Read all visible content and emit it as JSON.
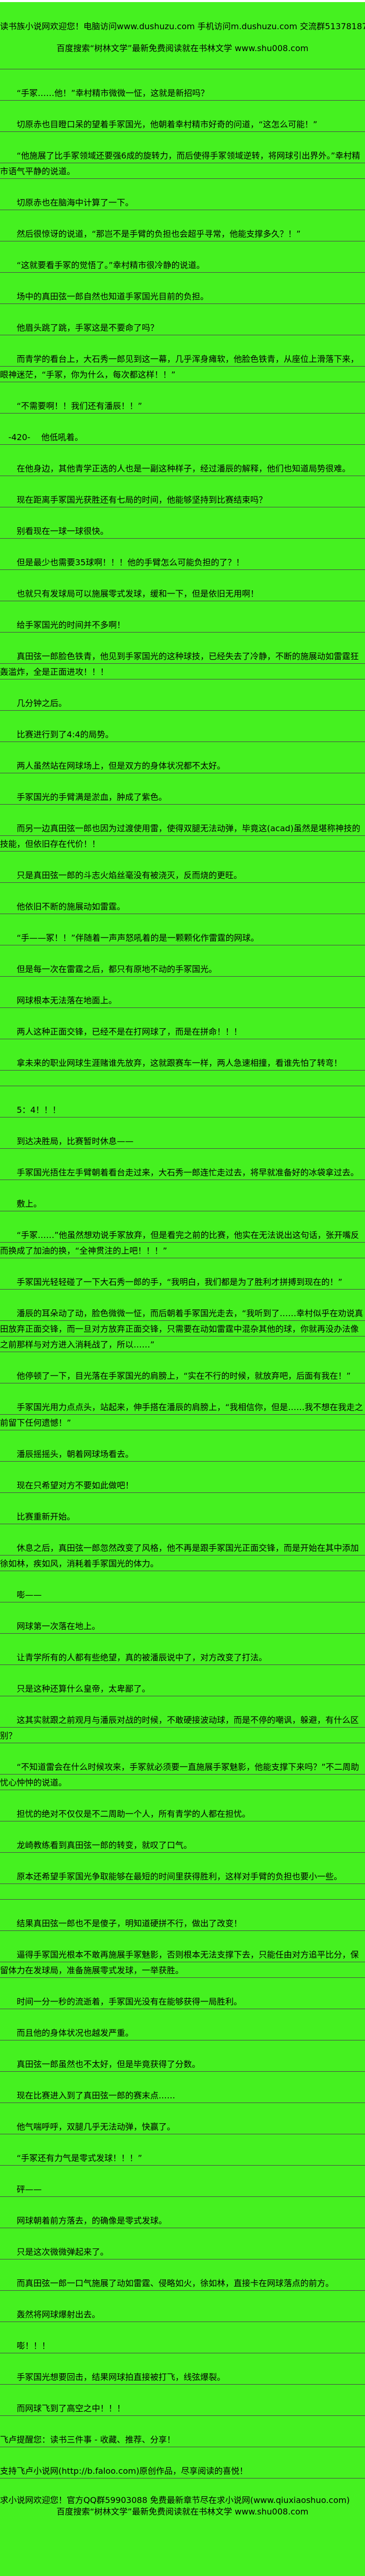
{
  "colors": {
    "background": "#45F120",
    "text": "#000000",
    "rule_line": "#4a4a4a",
    "top_strip": "#ffffff"
  },
  "header": {
    "line1": "读书族小说网欢迎您！电脑访问www.dushuzu.com 手机访问m.dushuzu.com 交流群513781872",
    "line2": "百度搜索“树林文学”最新免费阅读就在书林文学 www.shu008.com"
  },
  "content": {
    "page_marker": "-420-",
    "paragraphs": [
      {
        "text": "",
        "indent": 2
      },
      {
        "text": "“手冢……他！”幸村精市微微一怔，这就是新招吗？",
        "indent": 2
      },
      {
        "text": "切原赤也目瞪口呆的望着手冢国光，他朝着幸村精市好奇的问道，“这怎么可能！”",
        "indent": 2
      },
      {
        "text": "“他施展了比手冢领域还要强6成的旋转力，而后使得手冢领域逆转，将网球引出界外。”幸村精市语气平静的说道。",
        "indent": 2
      },
      {
        "text": "切原赤也在脑海中计算了一下。",
        "indent": 2
      },
      {
        "text": "然后很惊讶的说道，“那岂不是手臂的负担也会超乎寻常，他能支撑多久？！”",
        "indent": 2
      },
      {
        "text": "“这就要看手冢的觉悟了。”幸村精市很冷静的说道。",
        "indent": 2
      },
      {
        "text": "场中的真田弦一郎自然也知道手冢国光目前的负担。",
        "indent": 2
      },
      {
        "text": "他眉头跳了跳，手冢这是不要命了吗？",
        "indent": 2
      },
      {
        "text": "而青学的看台上，大石秀一郎见到这一幕，几乎浑身瘫软，他脸色铁青，从座位上滑落下来，眼神迷茫，“手冢，你为什么，每次都这样！！”",
        "indent": 2
      },
      {
        "text": "“不需要啊！！我们还有潘辰！！”",
        "indent": 2
      },
      {
        "text": "-420-　 他低吼着。",
        "indent": 1
      },
      {
        "text": "在他身边，其他青学正选的人也是一副这种样子，经过潘辰的解释，他们也知道局势很难。",
        "indent": 2
      },
      {
        "text": "现在距离手冢国光获胜还有七局的时间，他能够坚持到比赛结束吗？",
        "indent": 2
      },
      {
        "text": "别看现在一球一球很快。",
        "indent": 2
      },
      {
        "text": "但是最少也需要35球啊！！！他的手臂怎么可能负担的了？！",
        "indent": 2
      },
      {
        "text": "也就只有发球局可以施展零式发球，缓和一下，但是依旧无用啊！",
        "indent": 2
      },
      {
        "text": "给手冢国光的时间并不多啊！",
        "indent": 2
      },
      {
        "text": "真田弦一郎脸色铁青，他见到手冢国光的这种球技，已经失去了冷静，不断的施展动如雷霆狂轰滥炸，全是正面进攻！！！",
        "indent": 2
      },
      {
        "text": "几分钟之后。",
        "indent": 2
      },
      {
        "text": "比赛进行到了4:4的局势。",
        "indent": 2
      },
      {
        "text": "两人虽然站在网球场上，但是双方的身体状况都不太好。",
        "indent": 2
      },
      {
        "text": "手冢国光的手臂满是淤血，肿成了紫色。",
        "indent": 2
      },
      {
        "text": "而另一边真田弦一郎也因为过渡使用雷，使得双腿无法动弹，毕竟这(acad)虽然是堪称神技的技能，但依旧存在代价！！",
        "indent": 2
      },
      {
        "text": "只是真田弦一郎的斗志火焰丝毫没有被浇灭，反而烧的更旺。",
        "indent": 2
      },
      {
        "text": "他依旧不断的施展动如雷霆。",
        "indent": 2
      },
      {
        "text": "“手——冢！！”伴随着一声声怒吼着的是一颗颗化作雷霆的网球。",
        "indent": 2
      },
      {
        "text": "但是每一次在雷霆之后，都只有原地不动的手冢国光。",
        "indent": 2
      },
      {
        "text": "网球根本无法落在地面上。",
        "indent": 2
      },
      {
        "text": "两人这种正面交锋，已经不是在打网球了，而是在拼命！！！",
        "indent": 2
      },
      {
        "text": "拿未来的职业网球生涯赌谁先放弃，这就跟赛车一样，两人急速相撞，看谁先怕了转弯！",
        "indent": 2,
        "blank_line_after": true
      },
      {
        "text": "5：4！！！",
        "indent": 2
      },
      {
        "text": "到达决胜局，比赛暂时休息——",
        "indent": 2
      },
      {
        "text": "手冢国光捂住左手臂朝着看台走过来，大石秀一郎连忙走过去，将早就准备好的冰袋拿过去。",
        "indent": 2
      },
      {
        "text": "敷上。",
        "indent": 2
      },
      {
        "text": "“手冢……”他虽然想劝说手冢放弃，但是看完之前的比赛，他实在无法说出这句话，张开嘴反而换成了加油的换，“全神贯注的上吧！！！”",
        "indent": 2
      },
      {
        "text": "手冢国光轻轻碰了一下大石秀一郎的手，“我明白，我们都是为了胜利才拼搏到现在的！”",
        "indent": 2
      },
      {
        "text": "潘辰的耳朵动了动，脸色微微一怔，而后朝着手冢国光走去，“我听到了……幸村似乎在劝说真田放弃正面交锋，而一旦对方放弃正面交锋，只需要在动如雷霆中混杂其他的球，你就再没办法像之前那样与对方进入消耗战了，所以……”",
        "indent": 2
      },
      {
        "text": "他停顿了一下，目光落在手冢国光的肩膀上，“实在不行的时候，就放弃吧，后面有我在！”",
        "indent": 2
      },
      {
        "text": "手冢国光用力点点头，站起来，伸手搭在潘辰的肩膀上，“我相信你，但是……我不想在我走之前留下任何遗憾！”",
        "indent": 2
      },
      {
        "text": "潘辰摇摇头，朝着网球场看去。",
        "indent": 2
      },
      {
        "text": "现在只希望对方不要如此做吧！",
        "indent": 2
      },
      {
        "text": "比赛重新开始。",
        "indent": 2
      },
      {
        "text": "休息之后，真田弦一郎忽然改变了风格，他不再是跟手冢国光正面交锋，而是开始在其中添加徐如林，疾如风，消耗着手冢国光的体力。",
        "indent": 2
      },
      {
        "text": "嘭——",
        "indent": 2
      },
      {
        "text": "网球第一次落在地上。",
        "indent": 2
      },
      {
        "text": "让青学所有的人都有些绝望，真的被潘辰说中了，对方改变了打法。",
        "indent": 2
      },
      {
        "text": "只是这种还算什么皇帝，太卑鄙了。",
        "indent": 2
      },
      {
        "text": "这其实就跟之前观月与潘辰对战的时候，不敢硬接波动球，而是不停的嘲讽，躲避，有什么区别？",
        "indent": 2
      },
      {
        "text": "“不知道雷会在什么时候攻来，手冢就必须要一直施展手冢魅影，他能支撑下来吗？”不二周助忧心忡忡的说道。",
        "indent": 2
      },
      {
        "text": "担忧的绝对不仅仅是不二周助一个人，所有青学的人都在担忧。",
        "indent": 2
      },
      {
        "text": "龙崎教练看到真田弦一郎的转变，就叹了口气。",
        "indent": 2
      },
      {
        "text": "原本还希望手冢国光争取能够在最短的时间里获得胜利，这样对手臂的负担也要小一些。",
        "indent": 2,
        "blank_line_after": true
      },
      {
        "text": "结果真田弦一郎也不是傻子，明知道硬拼不行，做出了改变！",
        "indent": 2
      },
      {
        "text": "逼得手冢国光根本不敢再施展手冢魅影，否则根本无法支撑下去，只能任由对方追平比分，保留体力在发球局，准备施展零式发球，一举获胜。",
        "indent": 2
      },
      {
        "text": "时间一分一秒的流逝着，手冢国光没有在能够获得一局胜利。",
        "indent": 2
      },
      {
        "text": "而且他的身体状况也越发严重。",
        "indent": 2
      },
      {
        "text": "真田弦一郎虽然也不太好，但是毕竟获得了分数。",
        "indent": 2
      },
      {
        "text": "现在比赛进入到了真田弦一郎的赛末点……",
        "indent": 2
      },
      {
        "text": "他气喘呼呼，双腿几乎无法动弹，快赢了。",
        "indent": 2
      },
      {
        "text": "“手冢还有力气是零式发球！！！”",
        "indent": 2
      },
      {
        "text": "砰——",
        "indent": 2
      },
      {
        "text": "网球朝着前方落去，的确像是零式发球。",
        "indent": 2
      },
      {
        "text": "只是这次微微弹起来了。",
        "indent": 2
      },
      {
        "text": "而真田弦一郎一口气施展了动如雷霆、侵略如火，徐如林，直接卡在网球落点的前方。",
        "indent": 2
      },
      {
        "text": "轰然将网球爆射出去。",
        "indent": 2
      },
      {
        "text": "嘭！！！",
        "indent": 2
      },
      {
        "text": "手冢国光想要回击，结果网球拍直接被打飞，线弦爆裂。",
        "indent": 2
      },
      {
        "text": "而网球飞到了高空之中！！！",
        "indent": 2
      },
      {
        "text": "飞卢提醒您：读书三件事 - 收藏、推荐、分享！",
        "indent": 0
      },
      {
        "text": "支持飞卢小说网(http://b.faloo.com)原创作品，尽享阅读的喜悦！",
        "indent": 0
      }
    ]
  },
  "footer": {
    "line1": "求小说网欢迎您！官方QQ群59903088 免费最新章节尽在求小说网(www.qiuxiaoshuo.com)",
    "line2": "百度搜索“树林文学”最新免费阅读就在书林文学 www.shu008.com"
  }
}
